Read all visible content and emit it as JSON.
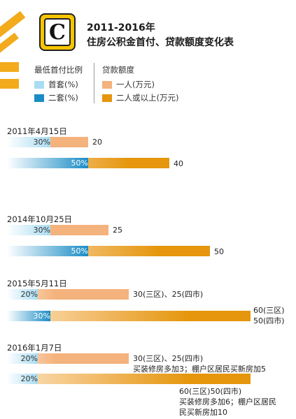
{
  "title": {
    "line1": "2011-2016年",
    "line2": "住房公积金首付、贷款额度变化表"
  },
  "logo": {
    "letter": "C"
  },
  "legend": {
    "ratio_header": "最低首付比例",
    "loan_header": "贷款额度",
    "first_home": "首套(%)",
    "second_home": "二套(%)",
    "one_person": "一人(万元)",
    "two_plus": "二人或以上(万元)"
  },
  "colors": {
    "first_home": "#a9dcf2",
    "second_home": "#1a8cc6",
    "one_person": "#f4b27c",
    "two_plus": "#e5960c",
    "deco": "#f3ab1c"
  },
  "chart_data": {
    "type": "bar",
    "title": "2011-2016年 住房公积金首付、贷款额度变化表",
    "categories": [
      "2011年4月15日",
      "2014年10月25日",
      "2015年5月11日",
      "2016年1月7日"
    ],
    "series": [
      {
        "name": "首套(%)",
        "values": [
          30,
          30,
          20,
          20
        ]
      },
      {
        "name": "二套(%)",
        "values": [
          50,
          50,
          30,
          20
        ]
      },
      {
        "name": "一人(万元)",
        "values": [
          20,
          25,
          30,
          30
        ]
      },
      {
        "name": "二人或以上(万元)",
        "values": [
          40,
          50,
          60,
          60
        ]
      }
    ],
    "groups": [
      {
        "date": "2011年4月15日",
        "row1": {
          "pct": "30%",
          "value": 20,
          "label": "20"
        },
        "row2": {
          "pct": "50%",
          "value": 40,
          "label": "40"
        }
      },
      {
        "date": "2014年10月25日",
        "row1": {
          "pct": "30%",
          "value": 25,
          "label": "25"
        },
        "row2": {
          "pct": "50%",
          "value": 50,
          "label": "50"
        }
      },
      {
        "date": "2015年5月11日",
        "row1": {
          "pct": "20%",
          "value": 30,
          "label": "30(三区)、25(四市)"
        },
        "row2": {
          "pct": "30%",
          "value": 60,
          "label": "60(三区)",
          "label2": "50(四市)"
        }
      },
      {
        "date": "2016年1月7日",
        "row1": {
          "pct": "20%",
          "value": 30,
          "label": "30(三区)、25(四市)",
          "note": "买装修房多加3；棚户区居民买新房加5"
        },
        "row2": {
          "pct": "20%",
          "value": 60,
          "label": "60(三区)50(四市)",
          "note": "买装修房多加6；棚户区居民",
          "note2": "民买新房加10"
        }
      }
    ]
  }
}
